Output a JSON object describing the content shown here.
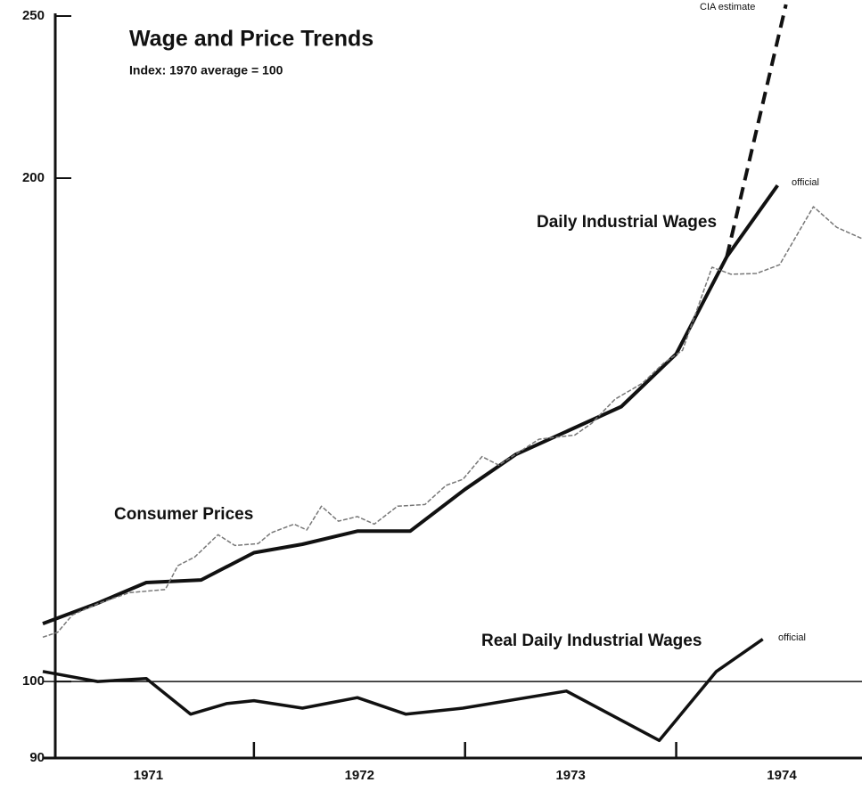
{
  "chart_data": {
    "type": "line",
    "title": "Wage and Price Trends",
    "subtitle": "Index: 1970 average = 100",
    "log_scale": true,
    "grid": false,
    "reference_line": 100,
    "xlim": [
      1971,
      1974.88
    ],
    "xticks": [
      1972,
      1973,
      1974
    ],
    "x_labels": [
      {
        "value": 1971.5,
        "label": "1971"
      },
      {
        "value": 1972.5,
        "label": "1972"
      },
      {
        "value": 1973.5,
        "label": "1973"
      },
      {
        "value": 1974.5,
        "label": "1974"
      }
    ],
    "ylim": [
      90,
      250
    ],
    "yticks": [
      90,
      100,
      200,
      250
    ],
    "series": [
      {
        "name": "Daily Industrial Wages",
        "color": "#111111",
        "x": [
          1971.0,
          1971.26,
          1971.49,
          1971.75,
          1972.0,
          1972.23,
          1972.49,
          1972.74,
          1973.0,
          1973.24,
          1973.54,
          1973.74,
          1974.0,
          1974.24,
          1974.48
        ],
        "values": [
          108.3,
          111.4,
          114.6,
          115.0,
          119.4,
          120.8,
          123.0,
          123.0,
          130.3,
          136.7,
          142.2,
          146.0,
          157.0,
          179.5,
          198.0
        ]
      },
      {
        "name": "Consumer Prices",
        "color": "#777777",
        "x": [
          1971.0,
          1971.07,
          1971.14,
          1971.26,
          1971.41,
          1971.58,
          1971.64,
          1971.72,
          1971.83,
          1971.91,
          1972.02,
          1972.08,
          1972.19,
          1972.25,
          1972.32,
          1972.4,
          1972.49,
          1972.57,
          1972.68,
          1972.81,
          1972.91,
          1972.99,
          1973.08,
          1973.16,
          1973.35,
          1973.52,
          1973.6,
          1973.71,
          1973.84,
          1973.94,
          1974.03,
          1974.17,
          1974.26,
          1974.38,
          1974.49,
          1974.65,
          1974.76,
          1974.88
        ],
        "values": [
          106.3,
          107.0,
          109.6,
          111.3,
          113.0,
          113.5,
          117.3,
          118.7,
          122.4,
          120.6,
          120.9,
          122.7,
          124.2,
          123.2,
          127.3,
          124.7,
          125.5,
          124.2,
          127.3,
          127.6,
          131.0,
          132.1,
          136.3,
          134.7,
          139.6,
          140.4,
          142.7,
          147.5,
          150.8,
          155.0,
          157.8,
          176.9,
          175.2,
          175.4,
          177.5,
          192.3,
          186.9,
          184.0
        ]
      },
      {
        "name": "Real Daily Industrial Wages",
        "color": "#111111",
        "x": [
          1971.0,
          1971.26,
          1971.49,
          1971.7,
          1971.87,
          1972.0,
          1972.23,
          1972.49,
          1972.72,
          1972.99,
          1973.48,
          1973.92,
          1974.19,
          1974.41
        ],
        "values": [
          101.4,
          100,
          100.4,
          95.6,
          97.0,
          97.4,
          96.4,
          97.8,
          95.6,
          96.4,
          98.7,
          92.2,
          101.4,
          106.0
        ]
      },
      {
        "name": "CIA estimate",
        "color": "#111111",
        "dashed": true,
        "x": [
          1974.24,
          1974.52
        ],
        "values": [
          179.5,
          254
        ]
      }
    ],
    "annotations": [
      "official",
      "official"
    ]
  }
}
